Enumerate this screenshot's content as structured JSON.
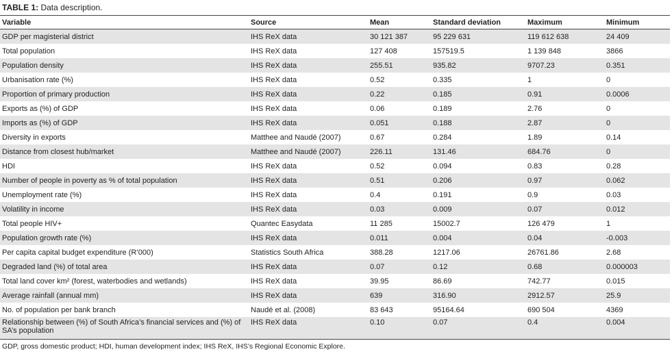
{
  "title": {
    "label": "TABLE 1:",
    "text": "Data description."
  },
  "table": {
    "header": [
      "Variable",
      "Source",
      "Mean",
      "Standard deviation",
      "Maximum",
      "Minimum"
    ],
    "rows": [
      [
        "GDP per magisterial district",
        "IHS ReX data",
        "30 121 387",
        "95 229 631",
        "119 612 638",
        "24 409"
      ],
      [
        "Total population",
        "IHS ReX data",
        "127 408",
        "157519.5",
        "1 139 848",
        "3866"
      ],
      [
        "Population density",
        "IHS ReX data",
        "255.51",
        "935.82",
        "9707.23",
        "0.351"
      ],
      [
        "Urbanisation rate (%)",
        "IHS ReX data",
        "0.52",
        "0.335",
        "1",
        "0"
      ],
      [
        "Proportion of primary production",
        "IHS ReX data",
        "0.22",
        "0.185",
        "0.91",
        "0.0006"
      ],
      [
        "Exports as (%) of GDP",
        "IHS ReX data",
        "0.06",
        "0.189",
        "2.76",
        "0"
      ],
      [
        "Imports as (%) of GDP",
        "IHS ReX data",
        "0.051",
        "0.188",
        "2.87",
        "0"
      ],
      [
        "Diversity in exports",
        "Matthee and Naudé (2007)",
        "0.67",
        "0.284",
        "1.89",
        "0.14"
      ],
      [
        "Distance from closest hub/market",
        "Matthee and Naudé (2007)",
        "226.11",
        "131.46",
        "684.76",
        "0"
      ],
      [
        "HDI",
        "IHS ReX data",
        "0.52",
        "0.094",
        "0.83",
        "0.28"
      ],
      [
        "Number of people in poverty as % of total population",
        "IHS ReX data",
        "0.51",
        "0.206",
        "0.97",
        "0.062"
      ],
      [
        "Unemployment rate (%)",
        "IHS ReX data",
        "0.4",
        "0.191",
        "0.9",
        "0.03"
      ],
      [
        "Volatility in income",
        "IHS ReX data",
        "0.03",
        "0.009",
        "0.07",
        "0.012"
      ],
      [
        "Total people HIV+",
        "Quantec Easydata",
        "11 285",
        "15002.7",
        "126 479",
        "1"
      ],
      [
        "Population growth rate (%)",
        "IHS ReX data",
        "0.011",
        "0.004",
        "0.04",
        "-0.003"
      ],
      [
        "Per capita capital budget expenditure (R’000)",
        "Statistics South Africa",
        "388.28",
        "1217.06",
        "26761.86",
        "2.68"
      ],
      [
        "Degraded land (%) of total area",
        "IHS ReX data",
        "0.07",
        "0.12",
        "0.68",
        "0.000003"
      ],
      [
        "Total land cover km² (forest, waterbodies and wetlands)",
        "IHS ReX data",
        "39.95",
        "86.69",
        "742.77",
        "0.015"
      ],
      [
        "Average rainfall (annual mm)",
        "IHS ReX data",
        "639",
        "316.90",
        "2912.57",
        "25.9"
      ],
      [
        "No. of population per bank branch",
        "Naudé et al. (2008)",
        "83 643",
        "95164.64",
        "690 504",
        "4369"
      ],
      [
        "Relationship between (%) of South Africa’s financial services and (%) of SA’s population",
        "IHS ReX data",
        "0.10",
        "0.07",
        "0.4",
        "0.004"
      ]
    ]
  },
  "footnote": "GDP, gross domestic product; HDI, human development index; IHS ReX, IHS’s Regional Economic Explore."
}
